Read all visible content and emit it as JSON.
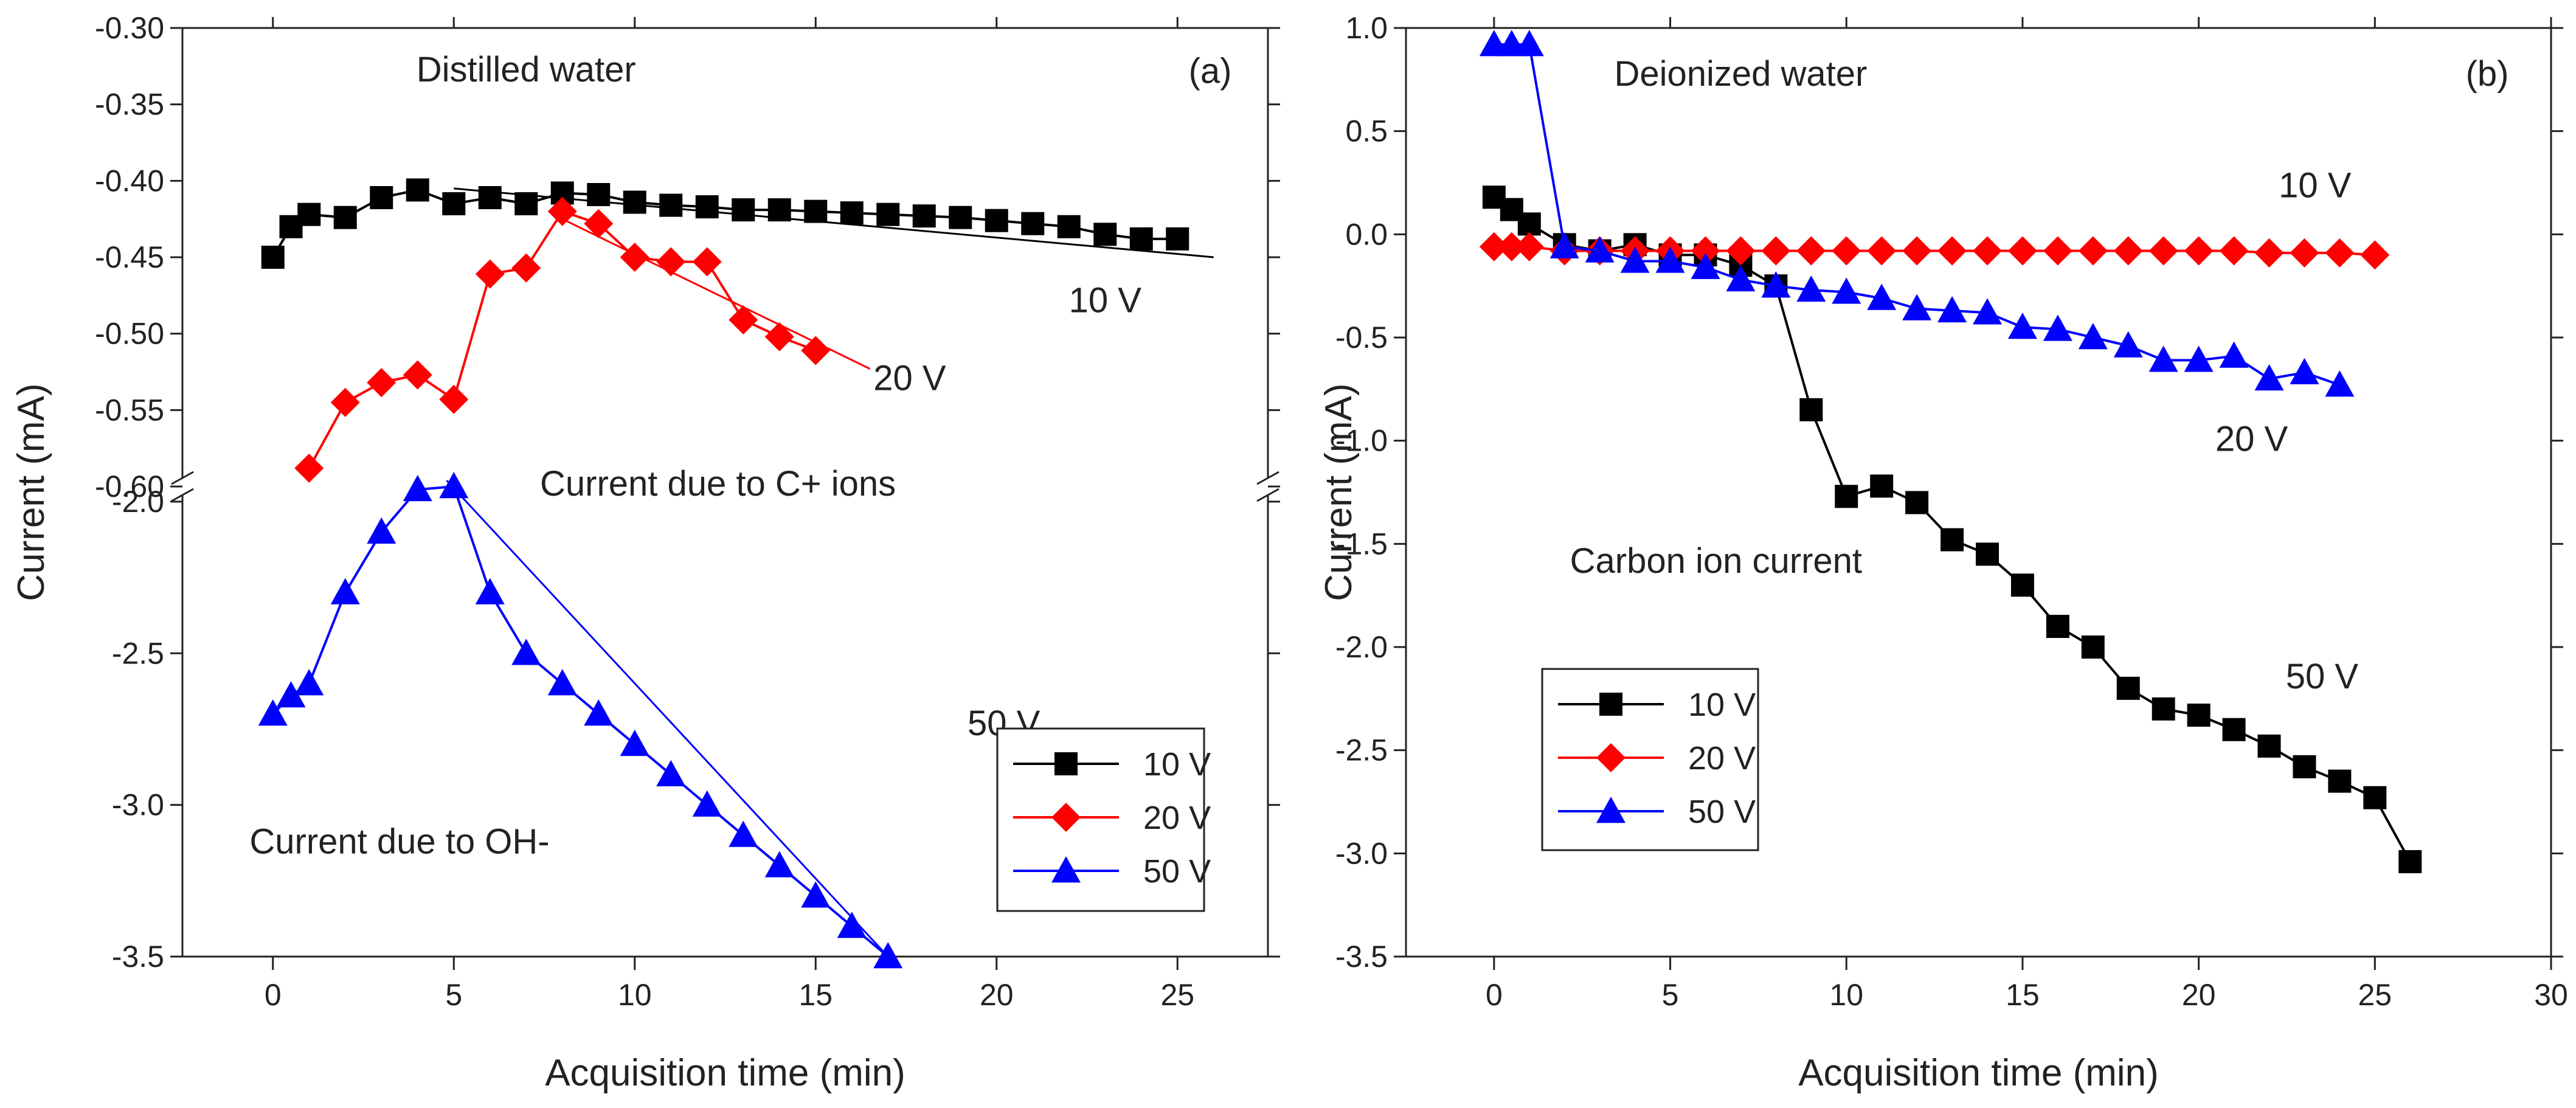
{
  "chart_data": [
    {
      "type": "line",
      "panel_label": "(a)",
      "title": "Distilled water",
      "xlabel": "Acquisition time (min)",
      "ylabel": "Current (mA)",
      "xlim": [
        -2.5,
        27.5
      ],
      "x_ticks": [
        0,
        5,
        10,
        15,
        20,
        25
      ],
      "x_tick_labels": [
        "0",
        "5",
        "10",
        "15",
        "20",
        "25"
      ],
      "axis_break": true,
      "upper_segment": {
        "ylim": [
          -0.6,
          -0.3
        ],
        "y_ticks": [
          -0.3,
          -0.35,
          -0.4,
          -0.45,
          -0.5,
          -0.55,
          -0.6
        ],
        "y_tick_labels": [
          "-0.30",
          "-0.35",
          "-0.40",
          "-0.45",
          "-0.50",
          "-0.55",
          "-0.60"
        ]
      },
      "lower_segment": {
        "ylim": [
          -3.5,
          -1.95
        ],
        "y_ticks": [
          -2.0,
          -2.5,
          -3.0,
          -3.5
        ],
        "y_tick_labels": [
          "-2.0",
          "-2.5",
          "-3.0",
          "-3.5"
        ]
      },
      "series": [
        {
          "name": "10 V",
          "color": "#000000",
          "marker": "square",
          "segment": "upper",
          "x": [
            0,
            0.5,
            1,
            2,
            3,
            4,
            5,
            6,
            7,
            8,
            9,
            10,
            11,
            12,
            13,
            14,
            15,
            16,
            17,
            18,
            19,
            20,
            21,
            22,
            23,
            24,
            25
          ],
          "y": [
            -0.45,
            -0.43,
            -0.422,
            -0.424,
            -0.411,
            -0.406,
            -0.415,
            -0.411,
            -0.415,
            -0.408,
            -0.409,
            -0.414,
            -0.416,
            -0.417,
            -0.419,
            -0.419,
            -0.42,
            -0.421,
            -0.422,
            -0.423,
            -0.424,
            -0.426,
            -0.428,
            -0.43,
            -0.435,
            -0.438,
            -0.438
          ]
        },
        {
          "name": "20 V",
          "color": "#ff0000",
          "marker": "diamond",
          "segment": "upper",
          "x": [
            1,
            2,
            3,
            4,
            5,
            6,
            7,
            8,
            9,
            10,
            11,
            12,
            13,
            14,
            15
          ],
          "y": [
            -0.588,
            -0.545,
            -0.532,
            -0.527,
            -0.543,
            -0.461,
            -0.457,
            -0.42,
            -0.428,
            -0.45,
            -0.453,
            -0.453,
            -0.491,
            -0.502,
            -0.511
          ]
        },
        {
          "name": "50 V",
          "color": "#0000ff",
          "marker": "triangle",
          "segment": "lower",
          "x": [
            0,
            0.5,
            1,
            2,
            3,
            4,
            5,
            6,
            7,
            8,
            9,
            10,
            11,
            12,
            13,
            14,
            15,
            16,
            17
          ],
          "y": [
            -2.7,
            -2.64,
            -2.6,
            -2.3,
            -2.1,
            -1.96,
            -1.95,
            -2.3,
            -2.5,
            -2.6,
            -2.7,
            -2.8,
            -2.9,
            -3.0,
            -3.1,
            -3.2,
            -3.3,
            -3.4,
            -3.5
          ]
        }
      ],
      "trend_lines": [
        {
          "color": "#000000",
          "segment": "upper",
          "x": [
            5,
            26
          ],
          "y": [
            -0.405,
            -0.45
          ]
        },
        {
          "color": "#ff0000",
          "segment": "upper",
          "x": [
            8,
            16.5
          ],
          "y": [
            -0.425,
            -0.523
          ]
        },
        {
          "color": "#0000ff",
          "segment": "lower",
          "x": [
            4.8,
            17
          ],
          "y": [
            -1.93,
            -3.5
          ]
        }
      ],
      "annotations": [
        {
          "text": "Distilled water",
          "x": 7,
          "y": -0.335,
          "segment": "upper"
        },
        {
          "text": "(a)",
          "x": 26.5,
          "y": -0.336,
          "segment": "upper"
        },
        {
          "text": "10 V",
          "x": 23,
          "y": -0.486,
          "segment": "upper"
        },
        {
          "text": "20 V",
          "x": 17.6,
          "y": -0.537,
          "segment": "upper"
        },
        {
          "text": "Current due to C+ ions",
          "x": 12.3,
          "y": -0.606,
          "segment": "upper"
        },
        {
          "text": "50 V",
          "x": 20.2,
          "y": -2.77,
          "segment": "lower"
        },
        {
          "text": "Current due to OH-",
          "x": 3.5,
          "y": -3.16,
          "segment": "lower"
        }
      ],
      "legend": {
        "position": "bottom-right",
        "entries": [
          "10 V",
          "20 V",
          "50 V"
        ]
      }
    },
    {
      "type": "line",
      "panel_label": "(b)",
      "title": "Deionized water",
      "xlabel": "Acquisition time (min)",
      "ylabel": "Current (mA)",
      "xlim": [
        -2.5,
        30
      ],
      "ylim": [
        -3.5,
        1.0
      ],
      "x_ticks": [
        0,
        5,
        10,
        15,
        20,
        25,
        30
      ],
      "x_tick_labels": [
        "0",
        "5",
        "10",
        "15",
        "20",
        "25",
        "30"
      ],
      "y_ticks": [
        1.0,
        0.5,
        0.0,
        -0.5,
        -1.0,
        -1.5,
        -2.0,
        -2.5,
        -3.0,
        -3.5
      ],
      "y_tick_labels": [
        "1.0",
        "0.5",
        "0.0",
        "-0.5",
        "-1.0",
        "-1.5",
        "-2.0",
        "-2.5",
        "-3.0",
        "-3.5"
      ],
      "series": [
        {
          "name": "10 V",
          "color": "#000000",
          "marker": "square",
          "x": [
            0,
            0.5,
            1,
            2,
            3,
            4,
            5,
            6,
            7,
            8,
            9,
            10,
            11,
            12,
            13,
            14,
            15,
            16,
            17,
            18,
            19,
            20,
            21,
            22,
            23,
            24,
            25,
            26
          ],
          "y": [
            0.18,
            0.12,
            0.05,
            -0.05,
            -0.08,
            -0.05,
            -0.1,
            -0.1,
            -0.15,
            -0.25,
            -0.85,
            -1.27,
            -1.22,
            -1.3,
            -1.48,
            -1.55,
            -1.7,
            -1.9,
            -2.0,
            -2.2,
            -2.3,
            -2.33,
            -2.4,
            -2.48,
            -2.58,
            -2.65,
            -2.73,
            -3.04
          ]
        },
        {
          "name": "20 V",
          "color": "#ff0000",
          "marker": "diamond",
          "x": [
            0,
            0.5,
            1,
            2,
            3,
            4,
            5,
            6,
            7,
            8,
            9,
            10,
            11,
            12,
            13,
            14,
            15,
            16,
            17,
            18,
            19,
            20,
            21,
            22,
            23,
            24,
            25
          ],
          "y": [
            -0.06,
            -0.06,
            -0.06,
            -0.08,
            -0.08,
            -0.08,
            -0.08,
            -0.08,
            -0.08,
            -0.08,
            -0.08,
            -0.08,
            -0.08,
            -0.08,
            -0.08,
            -0.08,
            -0.08,
            -0.08,
            -0.08,
            -0.08,
            -0.08,
            -0.08,
            -0.08,
            -0.09,
            -0.09,
            -0.09,
            -0.1
          ]
        },
        {
          "name": "50 V",
          "color": "#0000ff",
          "marker": "triangle",
          "x": [
            0,
            0.5,
            1,
            2,
            3,
            4,
            5,
            6,
            7,
            8,
            9,
            10,
            11,
            12,
            13,
            14,
            15,
            16,
            17,
            18,
            19,
            20,
            21,
            22,
            23,
            24
          ],
          "y": [
            0.92,
            0.92,
            0.92,
            -0.06,
            -0.08,
            -0.13,
            -0.13,
            -0.16,
            -0.22,
            -0.25,
            -0.27,
            -0.28,
            -0.31,
            -0.36,
            -0.37,
            -0.38,
            -0.45,
            -0.46,
            -0.5,
            -0.54,
            -0.61,
            -0.61,
            -0.59,
            -0.7,
            -0.67,
            -0.73
          ]
        }
      ],
      "annotations": [
        {
          "text": "Deionized water",
          "x": 7,
          "y": 0.72
        },
        {
          "text": "(b)",
          "x": 28.8,
          "y": 0.72
        },
        {
          "text": "10 V",
          "x": 23.3,
          "y": 0.18
        },
        {
          "text": "20 V",
          "x": 21.5,
          "y": -1.05
        },
        {
          "text": "Carbon ion current",
          "x": 6.3,
          "y": -1.64
        },
        {
          "text": "50 V",
          "x": 23.5,
          "y": -2.2
        }
      ],
      "legend": {
        "position": "bottom-left",
        "entries": [
          "10 V",
          "20 V",
          "50 V"
        ]
      }
    }
  ]
}
